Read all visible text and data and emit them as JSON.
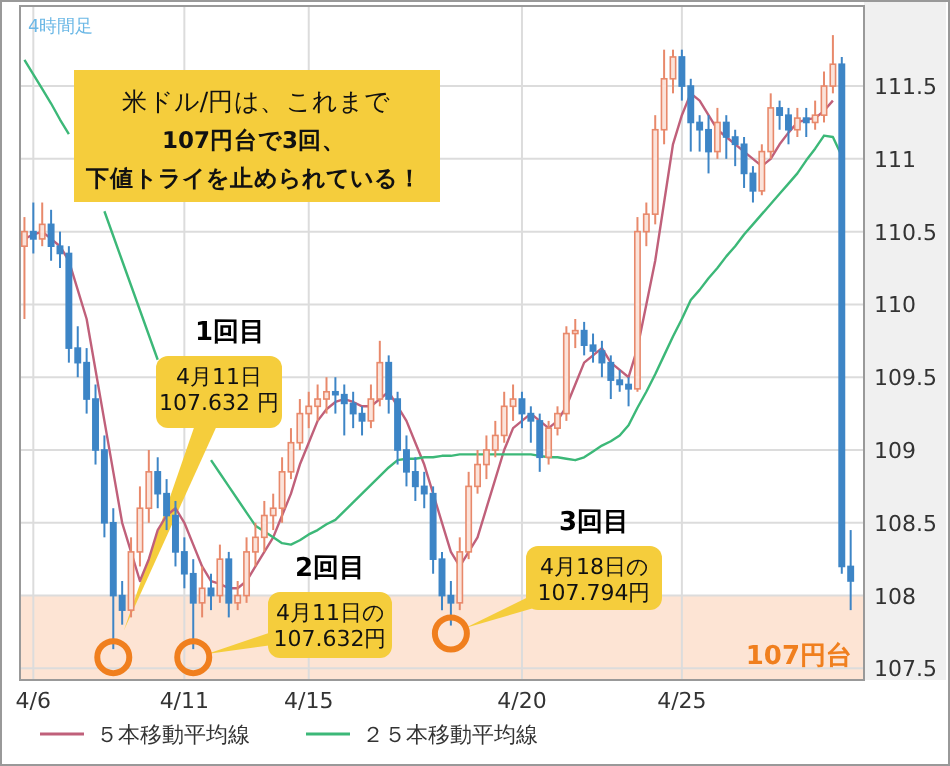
{
  "chart_data": {
    "type": "candlestick",
    "title": "米ドル/円は、これまで",
    "subtitle": "107円台で3回、下値トライを止められている！",
    "categories": [
      null,
      "4/6",
      null,
      null,
      null,
      null,
      null,
      null,
      null,
      null,
      null,
      null,
      null,
      null,
      null,
      null,
      null,
      null,
      "4/11",
      null,
      null,
      null,
      null,
      null,
      null,
      null,
      null,
      null,
      null,
      null,
      null,
      null,
      "4/15",
      null,
      null,
      null,
      null,
      null,
      null,
      null,
      null,
      null,
      null,
      null,
      null,
      null,
      null,
      null,
      null,
      null,
      null,
      null,
      null,
      null,
      null,
      null,
      "4/20",
      null,
      null,
      null,
      null,
      null,
      null,
      null,
      null,
      null,
      null,
      null,
      null,
      null,
      null,
      null,
      null,
      null,
      "4/25",
      null,
      null,
      null,
      null,
      null,
      null,
      null,
      null,
      null,
      null,
      null,
      null,
      null,
      null,
      null,
      null,
      null,
      null,
      null
    ],
    "ohlc": [
      [
        110.4,
        110.6,
        109.9,
        110.5
      ],
      [
        110.5,
        110.7,
        110.35,
        110.45
      ],
      [
        110.45,
        110.7,
        110.4,
        110.55
      ],
      [
        110.55,
        110.65,
        110.3,
        110.4
      ],
      [
        110.4,
        110.5,
        110.25,
        110.35
      ],
      [
        110.35,
        110.4,
        109.6,
        109.7
      ],
      [
        109.7,
        109.85,
        109.5,
        109.6
      ],
      [
        109.6,
        109.7,
        109.25,
        109.35
      ],
      [
        109.35,
        109.45,
        108.9,
        109.0
      ],
      [
        109.0,
        109.1,
        108.4,
        108.5
      ],
      [
        108.5,
        108.6,
        107.632,
        108.0
      ],
      [
        108.0,
        108.1,
        107.8,
        107.9
      ],
      [
        107.9,
        108.4,
        107.85,
        108.3
      ],
      [
        108.3,
        108.75,
        108.2,
        108.6
      ],
      [
        108.6,
        109.0,
        108.5,
        108.85
      ],
      [
        108.85,
        108.95,
        108.6,
        108.7
      ],
      [
        108.7,
        108.8,
        108.45,
        108.55
      ],
      [
        108.55,
        108.65,
        108.2,
        108.3
      ],
      [
        108.3,
        108.4,
        108.05,
        108.15
      ],
      [
        108.15,
        108.25,
        107.632,
        107.95
      ],
      [
        107.95,
        108.2,
        107.85,
        108.05
      ],
      [
        108.05,
        108.15,
        107.9,
        108.0
      ],
      [
        108.0,
        108.35,
        107.95,
        108.25
      ],
      [
        108.25,
        108.3,
        107.85,
        107.95
      ],
      [
        107.95,
        108.1,
        107.9,
        108.0
      ],
      [
        108.0,
        108.4,
        107.95,
        108.3
      ],
      [
        108.3,
        108.5,
        108.2,
        108.4
      ],
      [
        108.4,
        108.65,
        108.3,
        108.55
      ],
      [
        108.55,
        108.7,
        108.45,
        108.6
      ],
      [
        108.6,
        108.95,
        108.5,
        108.85
      ],
      [
        108.85,
        109.15,
        108.8,
        109.05
      ],
      [
        109.05,
        109.35,
        109.0,
        109.25
      ],
      [
        109.25,
        109.4,
        109.15,
        109.3
      ],
      [
        109.3,
        109.45,
        109.2,
        109.35
      ],
      [
        109.35,
        109.5,
        109.25,
        109.4
      ],
      [
        109.4,
        109.5,
        109.25,
        109.38
      ],
      [
        109.38,
        109.45,
        109.1,
        109.32
      ],
      [
        109.32,
        109.4,
        109.15,
        109.25
      ],
      [
        109.25,
        109.3,
        109.1,
        109.2
      ],
      [
        109.2,
        109.45,
        109.15,
        109.35
      ],
      [
        109.35,
        109.75,
        109.3,
        109.6
      ],
      [
        109.6,
        109.65,
        109.25,
        109.35
      ],
      [
        109.35,
        109.4,
        108.9,
        109.0
      ],
      [
        109.0,
        109.1,
        108.75,
        108.85
      ],
      [
        108.85,
        108.95,
        108.65,
        108.75
      ],
      [
        108.75,
        108.85,
        108.6,
        108.7
      ],
      [
        108.7,
        108.75,
        108.15,
        108.25
      ],
      [
        108.25,
        108.3,
        107.9,
        108.0
      ],
      [
        108.0,
        108.1,
        107.794,
        107.95
      ],
      [
        107.95,
        108.4,
        107.9,
        108.3
      ],
      [
        108.3,
        108.85,
        108.25,
        108.75
      ],
      [
        108.75,
        109.0,
        108.7,
        108.9
      ],
      [
        108.9,
        109.1,
        108.8,
        109.0
      ],
      [
        109.0,
        109.2,
        108.95,
        109.1
      ],
      [
        109.1,
        109.4,
        109.05,
        109.3
      ],
      [
        109.3,
        109.45,
        109.2,
        109.35
      ],
      [
        109.35,
        109.4,
        109.15,
        109.25
      ],
      [
        109.25,
        109.3,
        109.05,
        109.2
      ],
      [
        109.2,
        109.25,
        108.85,
        108.95
      ],
      [
        108.95,
        109.2,
        108.9,
        109.15
      ],
      [
        109.15,
        109.3,
        109.1,
        109.25
      ],
      [
        109.25,
        109.85,
        109.2,
        109.8
      ],
      [
        109.8,
        109.9,
        109.7,
        109.82
      ],
      [
        109.82,
        109.88,
        109.65,
        109.72
      ],
      [
        109.72,
        109.8,
        109.6,
        109.68
      ],
      [
        109.68,
        109.75,
        109.5,
        109.6
      ],
      [
        109.6,
        109.65,
        109.35,
        109.48
      ],
      [
        109.48,
        109.55,
        109.4,
        109.45
      ],
      [
        109.45,
        109.5,
        109.3,
        109.42
      ],
      [
        109.42,
        110.6,
        109.4,
        110.5
      ],
      [
        110.5,
        110.7,
        110.4,
        110.62
      ],
      [
        110.62,
        111.3,
        110.55,
        111.2
      ],
      [
        111.2,
        111.75,
        111.1,
        111.55
      ],
      [
        111.55,
        111.75,
        111.45,
        111.7
      ],
      [
        111.7,
        111.75,
        111.4,
        111.5
      ],
      [
        111.5,
        111.55,
        111.05,
        111.25
      ],
      [
        111.25,
        111.3,
        111.05,
        111.2
      ],
      [
        111.2,
        111.3,
        110.9,
        111.05
      ],
      [
        111.05,
        111.35,
        111.0,
        111.25
      ],
      [
        111.25,
        111.3,
        111.0,
        111.15
      ],
      [
        111.15,
        111.2,
        110.95,
        111.1
      ],
      [
        111.1,
        111.15,
        110.8,
        110.9
      ],
      [
        110.9,
        110.95,
        110.7,
        110.78
      ],
      [
        110.78,
        111.1,
        110.75,
        111.05
      ],
      [
        111.05,
        111.45,
        111.0,
        111.35
      ],
      [
        111.35,
        111.4,
        111.2,
        111.3
      ],
      [
        111.3,
        111.35,
        111.1,
        111.2
      ],
      [
        111.2,
        111.35,
        111.15,
        111.28
      ],
      [
        111.28,
        111.35,
        111.15,
        111.25
      ],
      [
        111.25,
        111.4,
        111.2,
        111.3
      ],
      [
        111.3,
        111.6,
        111.25,
        111.5
      ],
      [
        111.5,
        111.85,
        111.45,
        111.65
      ],
      [
        111.65,
        111.7,
        108.15,
        108.2
      ],
      [
        108.2,
        108.45,
        107.9,
        108.1
      ]
    ],
    "series": [
      {
        "name": "５本移動平均線",
        "type": "line",
        "color": "#c0607a",
        "values": [
          110.45,
          110.48,
          110.5,
          110.45,
          110.4,
          110.3,
          110.1,
          109.9,
          109.55,
          109.2,
          108.85,
          108.5,
          108.3,
          108.1,
          108.25,
          108.45,
          108.55,
          108.6,
          108.5,
          108.35,
          108.2,
          108.1,
          108.08,
          108.05,
          108.05,
          108.1,
          108.2,
          108.3,
          108.4,
          108.55,
          108.7,
          108.9,
          109.05,
          109.2,
          109.28,
          109.33,
          109.35,
          109.33,
          109.3,
          109.3,
          109.35,
          109.4,
          109.3,
          109.2,
          109.05,
          108.9,
          108.7,
          108.5,
          108.3,
          108.2,
          108.3,
          108.4,
          108.6,
          108.8,
          109.0,
          109.15,
          109.2,
          109.25,
          109.2,
          109.15,
          109.2,
          109.3,
          109.45,
          109.6,
          109.65,
          109.7,
          109.6,
          109.55,
          109.5,
          109.7,
          110.0,
          110.3,
          110.7,
          111.1,
          111.3,
          111.45,
          111.4,
          111.3,
          111.2,
          111.15,
          111.1,
          111.05,
          111.0,
          110.95,
          111.0,
          111.1,
          111.18,
          111.25,
          111.27,
          111.28,
          111.33,
          111.4,
          null,
          null
        ]
      },
      {
        "name": "２５本移動平均線",
        "type": "line",
        "color": "#3cb878",
        "values": [
          111.68,
          111.58,
          111.48,
          111.38,
          111.27,
          111.17,
          null,
          null,
          null,
          110.64,
          110.47,
          110.3,
          110.13,
          109.96,
          109.79,
          109.62,
          null,
          null,
          null,
          null,
          null,
          108.93,
          108.84,
          108.75,
          108.66,
          108.57,
          108.48,
          108.44,
          108.4,
          108.36,
          108.35,
          108.38,
          108.42,
          108.45,
          108.49,
          108.52,
          108.58,
          108.64,
          108.7,
          108.76,
          108.82,
          108.88,
          108.93,
          108.94,
          108.94,
          108.95,
          108.95,
          108.96,
          108.96,
          108.97,
          108.97,
          108.97,
          108.97,
          108.97,
          108.97,
          108.97,
          108.97,
          108.97,
          108.96,
          108.95,
          108.95,
          108.94,
          108.93,
          108.95,
          108.99,
          109.03,
          109.06,
          109.1,
          109.17,
          109.29,
          109.4,
          109.52,
          109.65,
          109.78,
          109.9,
          110.03,
          110.1,
          110.18,
          110.25,
          110.33,
          110.4,
          110.48,
          110.55,
          110.62,
          110.69,
          110.76,
          110.83,
          110.9,
          110.99,
          111.07,
          111.16,
          111.15,
          111.02,
          null
        ]
      }
    ],
    "ylim": [
      107.42,
      112.05
    ],
    "yticks": [
      107.5,
      108,
      108.5,
      109,
      109.5,
      110,
      110.5,
      111,
      111.5
    ],
    "grid": true,
    "legend": "bottom",
    "bands": [
      {
        "axis": "y",
        "from": 107.42,
        "to": 108,
        "label": "107円台",
        "color": "#fde4d4"
      }
    ],
    "annotations": [
      "4時間足",
      "1回目",
      "4月11日\n107.632 円",
      "2回目",
      "4月11日の\n107.632円",
      "3回目",
      "4月18日の\n107.794円"
    ]
  }
}
